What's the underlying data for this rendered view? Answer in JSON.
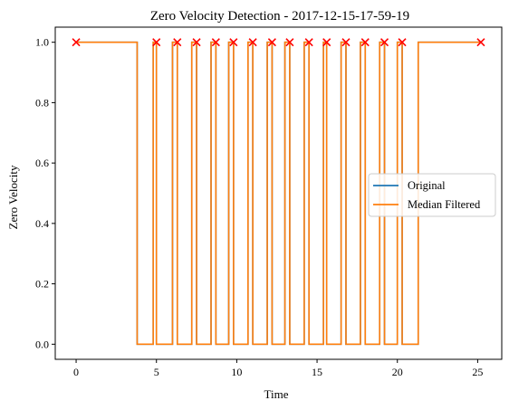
{
  "chart_data": {
    "type": "line",
    "title": "Zero Velocity Detection - 2017-12-15-17-59-19",
    "xlabel": "Time",
    "ylabel": "Zero Velocity",
    "xlim": [
      -1.3,
      26.5
    ],
    "ylim": [
      -0.05,
      1.05
    ],
    "xticks": [
      0,
      5,
      10,
      15,
      20,
      25
    ],
    "yticks": [
      0.0,
      0.2,
      0.4,
      0.6,
      0.8,
      1.0
    ],
    "xtick_labels": [
      "0",
      "5",
      "10",
      "15",
      "20",
      "25"
    ],
    "ytick_labels": [
      "0.0",
      "0.2",
      "0.4",
      "0.6",
      "0.8",
      "1.0"
    ],
    "grid": false,
    "legend_position": "center-right",
    "series": [
      {
        "name": "Original",
        "color": "#1f77b4",
        "style": "step",
        "x": [
          0,
          3.8,
          3.8,
          4.8,
          4.8,
          5.0,
          5.0,
          6.0,
          6.0,
          6.3,
          6.3,
          7.2,
          7.2,
          7.5,
          7.5,
          8.4,
          8.4,
          8.7,
          8.7,
          9.5,
          9.5,
          9.8,
          9.8,
          10.7,
          10.7,
          11.0,
          11.0,
          11.9,
          11.9,
          12.2,
          12.2,
          13.0,
          13.0,
          13.3,
          13.3,
          14.2,
          14.2,
          14.5,
          14.5,
          15.4,
          15.4,
          15.6,
          15.6,
          16.5,
          16.5,
          16.8,
          16.8,
          17.7,
          17.7,
          18.0,
          18.0,
          18.9,
          18.9,
          19.2,
          19.2,
          20.0,
          20.0,
          20.3,
          20.3,
          21.3,
          21.3,
          25.2
        ],
        "y": [
          1,
          1,
          0,
          0,
          1,
          1,
          0,
          0,
          1,
          1,
          0,
          0,
          1,
          1,
          0,
          0,
          1,
          1,
          0,
          0,
          1,
          1,
          0,
          0,
          1,
          1,
          0,
          0,
          1,
          1,
          0,
          0,
          1,
          1,
          0,
          0,
          1,
          1,
          0,
          0,
          1,
          1,
          0,
          0,
          1,
          1,
          0,
          0,
          1,
          1,
          0,
          0,
          1,
          1,
          0,
          0,
          1,
          1,
          0,
          0,
          1,
          1
        ]
      },
      {
        "name": "Median Filtered",
        "color": "#ff7f0e",
        "style": "step",
        "x": [
          0,
          3.8,
          3.8,
          4.8,
          4.8,
          5.0,
          5.0,
          6.0,
          6.0,
          6.3,
          6.3,
          7.2,
          7.2,
          7.5,
          7.5,
          8.4,
          8.4,
          8.7,
          8.7,
          9.5,
          9.5,
          9.8,
          9.8,
          10.7,
          10.7,
          11.0,
          11.0,
          11.9,
          11.9,
          12.2,
          12.2,
          13.0,
          13.0,
          13.3,
          13.3,
          14.2,
          14.2,
          14.5,
          14.5,
          15.4,
          15.4,
          15.6,
          15.6,
          16.5,
          16.5,
          16.8,
          16.8,
          17.7,
          17.7,
          18.0,
          18.0,
          18.9,
          18.9,
          19.2,
          19.2,
          20.0,
          20.0,
          20.3,
          20.3,
          21.3,
          21.3,
          25.2
        ],
        "y": [
          1,
          1,
          0,
          0,
          1,
          1,
          0,
          0,
          1,
          1,
          0,
          0,
          1,
          1,
          0,
          0,
          1,
          1,
          0,
          0,
          1,
          1,
          0,
          0,
          1,
          1,
          0,
          0,
          1,
          1,
          0,
          0,
          1,
          1,
          0,
          0,
          1,
          1,
          0,
          0,
          1,
          1,
          0,
          0,
          1,
          1,
          0,
          0,
          1,
          1,
          0,
          0,
          1,
          1,
          0,
          0,
          1,
          1,
          0,
          0,
          1,
          1
        ]
      }
    ],
    "markers": {
      "color": "#ff0000",
      "symbol": "x",
      "x": [
        0,
        5.0,
        6.3,
        7.5,
        8.7,
        9.8,
        11.0,
        12.2,
        13.3,
        14.5,
        15.6,
        16.8,
        18.0,
        19.2,
        20.3,
        25.2
      ],
      "y": [
        1,
        1,
        1,
        1,
        1,
        1,
        1,
        1,
        1,
        1,
        1,
        1,
        1,
        1,
        1,
        1
      ]
    }
  }
}
